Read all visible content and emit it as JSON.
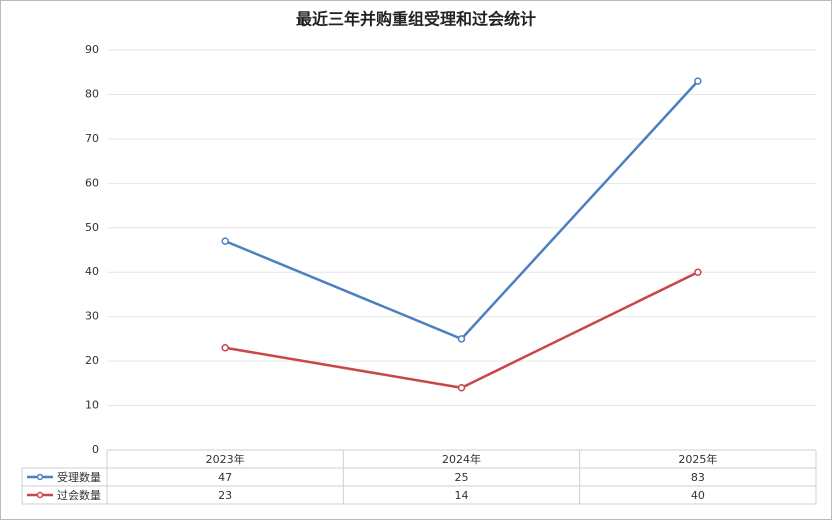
{
  "chart_data": {
    "type": "line",
    "title": "最近三年并购重组受理和过会统计",
    "categories": [
      "2023年",
      "2024年",
      "2025年"
    ],
    "series": [
      {
        "name": "受理数量",
        "color": "#4a7fc1",
        "values": [
          47,
          25,
          83
        ]
      },
      {
        "name": "过会数量",
        "color": "#c9464b",
        "values": [
          23,
          14,
          40
        ]
      }
    ],
    "ylim": [
      0,
      90
    ],
    "yticks": [
      0,
      10,
      20,
      30,
      40,
      50,
      60,
      70,
      80,
      90
    ],
    "grid": true
  }
}
